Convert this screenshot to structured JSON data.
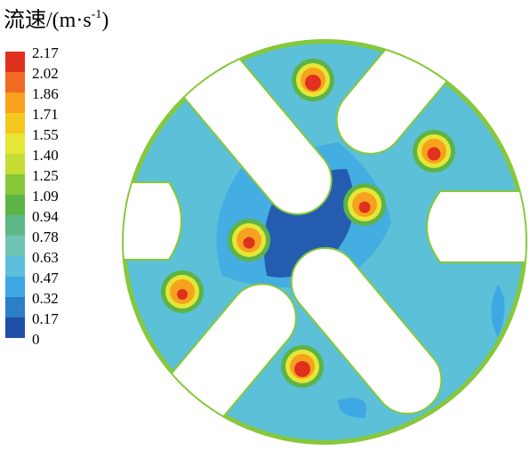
{
  "colorbar": {
    "title": "流速/(m·s",
    "title_sup": "-1",
    "title_end": ")",
    "levels": [
      2.17,
      2.02,
      1.86,
      1.71,
      1.55,
      {
        "value": 1.4,
        "label": "1.40"
      },
      1.25,
      1.09,
      0.94,
      0.78,
      0.63,
      0.47,
      0.32,
      0.17,
      0
    ],
    "colors": [
      "#e0301e",
      "#f06a22",
      "#f7a21e",
      "#f5c820",
      "#e6e636",
      "#c4dc34",
      "#86c83a",
      "#5cb446",
      "#5cb886",
      "#70c4b4",
      "#5cc0dc",
      "#3ea8e4",
      "#2c7ec6",
      "#1f4fa6"
    ]
  }
}
